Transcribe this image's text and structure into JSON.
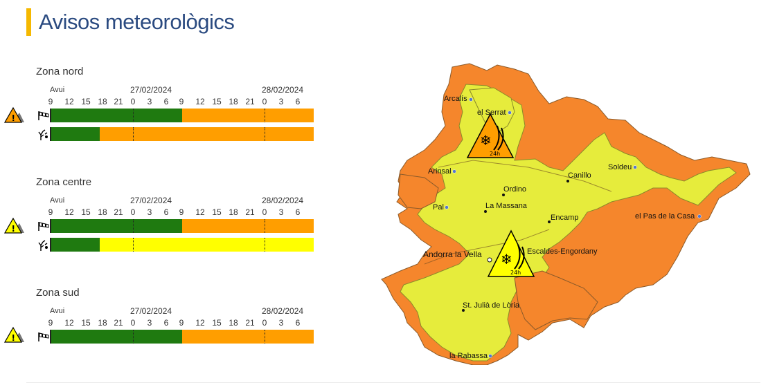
{
  "page": {
    "title": "Avisos meteorològics"
  },
  "timeline": {
    "today_label": "Avui",
    "hours": [
      "9",
      "12",
      "15",
      "18",
      "21",
      "0",
      "3",
      "6",
      "9",
      "12",
      "15",
      "18",
      "21",
      "0",
      "3",
      "6"
    ],
    "date_1": "27/02/2024",
    "date_2": "28/02/2024"
  },
  "colors": {
    "green": "#1f7a10",
    "orange": "#ff9e00",
    "yellow": "#ffff00",
    "map_orange": "#f5862c",
    "map_yellow": "#e6ec3c",
    "title_accent": "#f5b800"
  },
  "zones": [
    {
      "name": "Zona nord",
      "icon": "snow-warning-icon",
      "rows": [
        {
          "type": "wind-icon",
          "segments": [
            [
              "green",
              0.5
            ],
            [
              "orange",
              0.5
            ]
          ]
        },
        {
          "type": "avalanche-icon",
          "segments": [
            [
              "green",
              0.1875
            ],
            [
              "orange",
              0.8125
            ]
          ]
        }
      ]
    },
    {
      "name": "Zona centre",
      "icon": "warning-icon",
      "rows": [
        {
          "type": "wind-icon",
          "segments": [
            [
              "green",
              0.5
            ],
            [
              "orange",
              0.5
            ]
          ]
        },
        {
          "type": "avalanche-icon",
          "segments": [
            [
              "green",
              0.1875
            ],
            [
              "yellow",
              0.8125
            ]
          ]
        }
      ]
    },
    {
      "name": "Zona sud",
      "icon": "warning-icon",
      "rows": [
        {
          "type": "wind-icon",
          "segments": [
            [
              "green",
              0.5
            ],
            [
              "orange",
              0.5
            ]
          ]
        }
      ]
    }
  ],
  "map": {
    "places": {
      "arcalis": "Arcalís",
      "el_serrat": "el Serrat",
      "arinsal": "Arinsal",
      "canillo": "Canillo",
      "soldeu": "Soldeu",
      "ordino": "Ordino",
      "pal": "Pal",
      "la_massana": "La Massana",
      "encamp": "Encamp",
      "el_pas": "el Pas de la Casa",
      "andorra": "Andorra la Vella",
      "escaldes": "Escaldes-Engordany",
      "sant_julia": "St. Julià de Lòria",
      "rabassa": "la Rabassa"
    },
    "warning_1": {
      "label": "24h",
      "level": "orange"
    },
    "warning_2": {
      "label": "24h",
      "level": "yellow"
    }
  }
}
